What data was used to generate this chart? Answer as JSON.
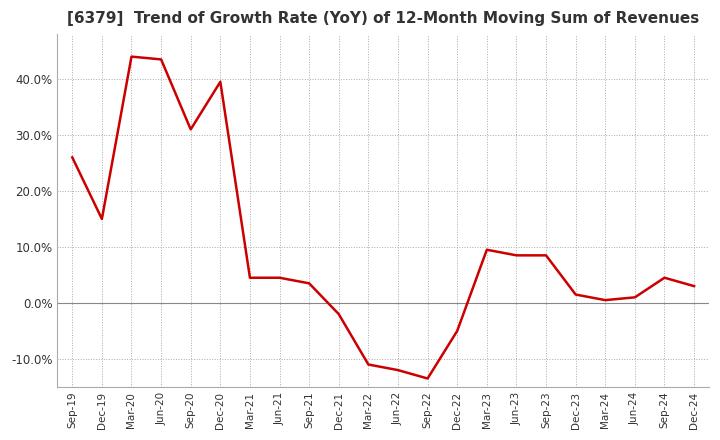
{
  "title": "[6379]  Trend of Growth Rate (YoY) of 12-Month Moving Sum of Revenues",
  "title_fontsize": 11,
  "x_labels": [
    "Sep-19",
    "Dec-19",
    "Mar-20",
    "Jun-20",
    "Sep-20",
    "Dec-20",
    "Mar-21",
    "Jun-21",
    "Sep-21",
    "Dec-21",
    "Mar-22",
    "Jun-22",
    "Sep-22",
    "Dec-22",
    "Mar-23",
    "Jun-23",
    "Sep-23",
    "Dec-23",
    "Mar-24",
    "Jun-24",
    "Sep-24",
    "Dec-24"
  ],
  "y_values": [
    26.0,
    15.0,
    44.0,
    43.5,
    31.0,
    39.5,
    4.5,
    4.5,
    3.5,
    -2.0,
    -11.0,
    -12.0,
    -13.5,
    -5.0,
    9.5,
    8.5,
    8.5,
    1.5,
    0.5,
    1.0,
    4.5,
    3.0
  ],
  "line_color": "#cc0000",
  "bg_color": "#ffffff",
  "plot_bg_color": "#ffffff",
  "grid_color": "#aaaaaa",
  "ylim": [
    -15,
    48
  ],
  "yticks": [
    -10.0,
    0.0,
    10.0,
    20.0,
    30.0,
    40.0
  ]
}
